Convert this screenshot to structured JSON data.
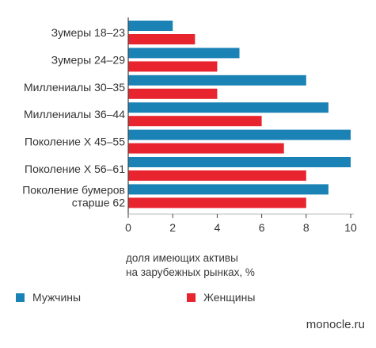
{
  "chart_data": {
    "type": "bar",
    "orientation": "horizontal",
    "categories": [
      [
        "Зумеры 18–23"
      ],
      [
        "Зумеры 24–29"
      ],
      [
        "Миллениалы 30–35"
      ],
      [
        "Миллениалы 36–44"
      ],
      [
        "Поколение X 45–55"
      ],
      [
        "Поколение X 56–61"
      ],
      [
        "Поколение бумеров",
        "старше 62"
      ]
    ],
    "series": [
      {
        "name": "Мужчины",
        "color": "#1a82b5",
        "values": [
          2,
          5,
          8,
          9,
          10,
          10,
          9
        ]
      },
      {
        "name": "Женщины",
        "color": "#e8242f",
        "values": [
          3,
          4,
          4,
          6,
          7,
          8,
          8
        ]
      }
    ],
    "xlim": [
      0,
      10
    ],
    "xticks": [
      "0",
      "2",
      "4",
      "6",
      "8",
      "10"
    ],
    "xlabel": [
      "доля имеющих активы",
      "на зарубежных рынках, %"
    ],
    "legend_position": "bottom",
    "grid": false
  },
  "source": "monocle.ru"
}
